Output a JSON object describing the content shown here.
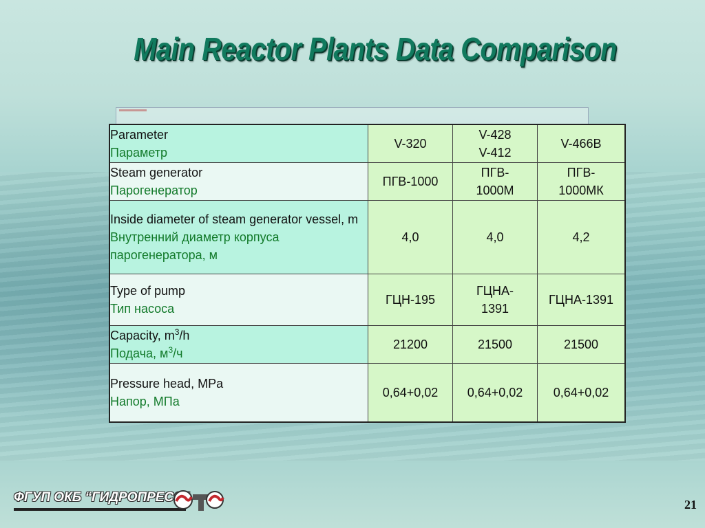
{
  "slide": {
    "title": "Main Reactor Plants Data Comparison",
    "page_number": "21",
    "logo_text": "ФГУП ОКБ “ГИДРОПРЕСС”"
  },
  "table": {
    "rows": [
      {
        "param_en": "Parameter",
        "param_ru": "Параметр",
        "v1": [
          "V-320"
        ],
        "v2": [
          "V-428",
          "V-412"
        ],
        "v3": [
          "V-466B"
        ],
        "v3_red": false
      },
      {
        "param_en": "Steam generator",
        "param_ru": "Парогенератор",
        "v1": [
          "ПГВ-1000"
        ],
        "v2": [
          "ПГВ-",
          "1000М"
        ],
        "v3": [
          "ПГВ-",
          "1000МК"
        ],
        "v3_red": true
      },
      {
        "param_en": "Inside diameter of steam generator vessel, m",
        "param_ru": "Внутренний диаметр корпуса парогенератора, м",
        "v1": [
          "4,0"
        ],
        "v2": [
          "4,0"
        ],
        "v3": [
          "4,2"
        ],
        "v3_red": true
      },
      {
        "param_en": "Type of pump",
        "param_ru": "Тип насоса",
        "v1": [
          "ГЦН-195"
        ],
        "v2": [
          "ГЦНА-",
          "1391"
        ],
        "v3": [
          "ГЦНА-1391"
        ],
        "v3_red": true
      },
      {
        "param_en_pre": "Capacity, m",
        "param_en_sup": "3",
        "param_en_post": "/h",
        "param_ru_pre": "Подача, м",
        "param_ru_sup": "3",
        "param_ru_post": "/ч",
        "v1": [
          "21200"
        ],
        "v2": [
          "21500"
        ],
        "v3": [
          "21500"
        ],
        "v3_red": false
      },
      {
        "param_en": "Pressure head, MPa",
        "param_ru": "Напор, МПа",
        "v1": [
          "0,64+0,02"
        ],
        "v2": [
          "0,64+0,02"
        ],
        "v3": [
          "0,64+0,02"
        ],
        "v3_red": false
      }
    ]
  }
}
